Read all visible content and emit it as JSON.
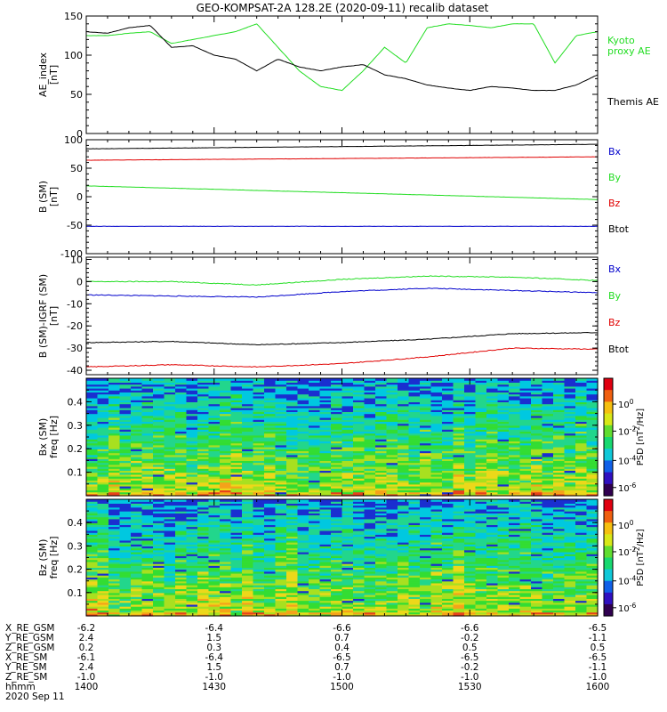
{
  "title": "GEO-KOMPSAT-2A 128.2E (2020-09-11) recalib dataset",
  "colors": {
    "black": "#000000",
    "green": "#22dd22",
    "red": "#e00000",
    "blue": "#0000cc"
  },
  "chart_data": [
    {
      "type": "line",
      "ylabel_lines": [
        "AE_index",
        "[nT]"
      ],
      "ylim": [
        0,
        150
      ],
      "yticks": [
        0,
        50,
        100,
        150
      ],
      "series": [
        {
          "name": "Kyoto proxy AE",
          "label_lines": [
            "Kyoto",
            "proxy AE"
          ],
          "color": "#22dd22",
          "x": [
            0,
            5,
            10,
            15,
            20,
            25,
            30,
            35,
            40,
            45,
            50,
            55,
            60,
            65,
            70,
            75,
            80,
            85,
            90,
            95,
            100,
            105,
            110,
            115,
            120
          ],
          "y": [
            125,
            125,
            128,
            130,
            115,
            120,
            125,
            130,
            140,
            110,
            80,
            60,
            55,
            80,
            110,
            90,
            135,
            140,
            138,
            135,
            140,
            140,
            90,
            125,
            130
          ]
        },
        {
          "name": "Themis AE",
          "label_lines": [
            "Themis AE"
          ],
          "color": "#000000",
          "x": [
            0,
            5,
            10,
            15,
            20,
            25,
            30,
            35,
            40,
            45,
            50,
            55,
            60,
            65,
            70,
            75,
            80,
            85,
            90,
            95,
            100,
            105,
            110,
            115,
            120
          ],
          "y": [
            130,
            128,
            135,
            138,
            110,
            112,
            100,
            95,
            80,
            95,
            85,
            80,
            85,
            88,
            75,
            70,
            62,
            58,
            55,
            60,
            58,
            55,
            55,
            62,
            75
          ]
        }
      ]
    },
    {
      "type": "line",
      "ylabel_lines": [
        "B (SM)",
        "[nT]"
      ],
      "ylim": [
        -100,
        100
      ],
      "yticks": [
        -100,
        -50,
        0,
        50,
        100
      ],
      "series": [
        {
          "name": "Bx",
          "color": "#0000cc",
          "x": [
            0,
            120
          ],
          "y": [
            -52,
            -52
          ]
        },
        {
          "name": "By",
          "color": "#22dd22",
          "x": [
            0,
            120
          ],
          "y": [
            19,
            -5
          ]
        },
        {
          "name": "Bz",
          "color": "#e00000",
          "x": [
            0,
            120
          ],
          "y": [
            64,
            70
          ]
        },
        {
          "name": "Btot",
          "color": "#000000",
          "x": [
            0,
            120
          ],
          "y": [
            84,
            92
          ]
        }
      ]
    },
    {
      "type": "line",
      "ylabel_lines": [
        "B (SM)-IGRF (SM)",
        "[nT]"
      ],
      "ylim": [
        -42,
        11
      ],
      "yticks": [
        -40,
        -30,
        -20,
        -10,
        0,
        10
      ],
      "series": [
        {
          "name": "Bx",
          "color": "#0000cc",
          "x": [
            0,
            20,
            40,
            60,
            80,
            100,
            120
          ],
          "y": [
            -6,
            -6.5,
            -7,
            -4.5,
            -3,
            -4,
            -5
          ]
        },
        {
          "name": "By",
          "color": "#22dd22",
          "x": [
            0,
            20,
            40,
            60,
            80,
            100,
            120
          ],
          "y": [
            0,
            0,
            -1.5,
            1,
            2.5,
            2,
            0.5
          ]
        },
        {
          "name": "Bz",
          "color": "#e00000",
          "x": [
            0,
            20,
            40,
            60,
            80,
            100,
            120
          ],
          "y": [
            -38.5,
            -37.5,
            -38.5,
            -37,
            -34,
            -30,
            -30.5
          ]
        },
        {
          "name": "Btot",
          "color": "#000000",
          "x": [
            0,
            20,
            40,
            60,
            80,
            100,
            120
          ],
          "y": [
            -27.5,
            -27,
            -28.5,
            -27.5,
            -26,
            -23.5,
            -23
          ]
        }
      ],
      "legend": [
        "Bx",
        "By",
        "Bz",
        "Btot"
      ]
    },
    {
      "type": "heatmap",
      "ylabel_lines": [
        "Bx (SM)",
        "freq [Hz]"
      ],
      "ylim": [
        0,
        0.5
      ],
      "yticks": [
        0.1,
        0.2,
        0.3,
        0.4
      ],
      "colorbar_label": "PSD [nT^2/Hz]",
      "colorbar_ticks": [
        "10^0",
        "10^-2",
        "10^-4",
        "10^-6"
      ]
    },
    {
      "type": "heatmap",
      "ylabel_lines": [
        "Bz (SM)",
        "freq [Hz]"
      ],
      "ylim": [
        0,
        0.5
      ],
      "yticks": [
        0.1,
        0.2,
        0.3,
        0.4
      ],
      "colorbar_label": "PSD [nT^2/Hz]",
      "colorbar_ticks": [
        "10^0",
        "10^-2",
        "10^-4",
        "10^-6"
      ]
    }
  ],
  "time_axis": {
    "row_labels": [
      "X_RE_GSM",
      "Y_RE_GSM",
      "Z_RE_GSM",
      "X_RE_SM",
      "Y_RE_SM",
      "Z_RE_SM",
      "hhmm"
    ],
    "date_label": "2020 Sep 11",
    "ticks": [
      {
        "values": [
          "-6.2",
          "2.4",
          "0.2",
          "-6.1",
          "2.4",
          "-1.0",
          "1400"
        ]
      },
      {
        "values": [
          "-6.4",
          "1.5",
          "0.3",
          "-6.4",
          "1.5",
          "-1.0",
          "1430"
        ]
      },
      {
        "values": [
          "-6.6",
          "0.7",
          "0.4",
          "-6.5",
          "0.7",
          "-1.0",
          "1500"
        ]
      },
      {
        "values": [
          "-6.6",
          "-0.2",
          "0.5",
          "-6.5",
          "-0.2",
          "-1.0",
          "1530"
        ]
      },
      {
        "values": [
          "-6.5",
          "-1.1",
          "0.5",
          "-6.5",
          "-1.1",
          "-1.0",
          "1600"
        ]
      }
    ]
  }
}
